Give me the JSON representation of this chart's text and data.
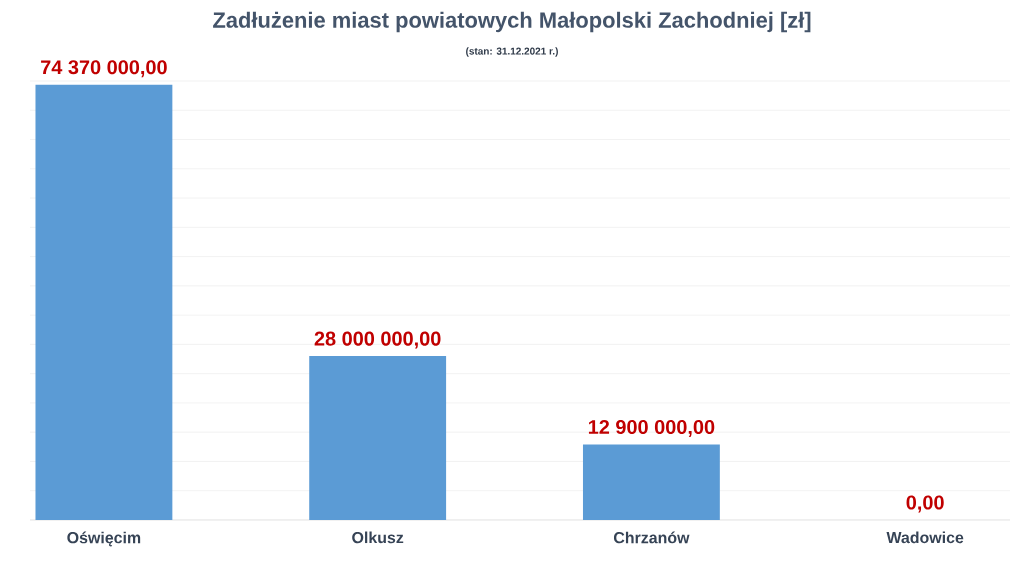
{
  "chart_data": {
    "type": "bar",
    "title": "Zadłużenie miast powiatowych Małopolski Zachodniej [zł]",
    "subtitle": "(stan: 31.12.2021 r.)",
    "categories": [
      "Oświęcim",
      "Olkusz",
      "Chrzanów",
      "Wadowice"
    ],
    "values": [
      74370000,
      28000000,
      12900000,
      0
    ],
    "value_labels": [
      "74 370 000,00",
      "28 000 000,00",
      "12 900 000,00",
      "0,00"
    ],
    "color": "#5b9bd5",
    "grid": "y",
    "tick_labels": "x"
  }
}
